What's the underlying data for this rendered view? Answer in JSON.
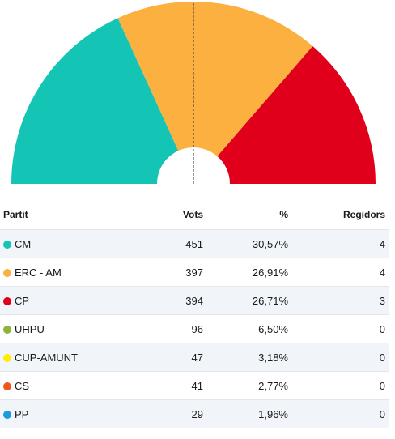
{
  "chart_data": {
    "type": "pie",
    "subtype": "hemicycle",
    "title": "",
    "majority_line": true,
    "seat_segments": [
      {
        "name": "CM",
        "seats": 4,
        "color": "#14c4b4"
      },
      {
        "name": "ERC - AM",
        "seats": 4,
        "color": "#fbb040"
      },
      {
        "name": "CP",
        "seats": 3,
        "color": "#e0001b"
      }
    ],
    "table_headers": {
      "party": "Partit",
      "votes": "Vots",
      "pct": "%",
      "seats": "Regidors"
    },
    "rows": [
      {
        "party": "CM",
        "votes": "451",
        "pct": "30,57%",
        "seats": "4",
        "color": "#14c4b4"
      },
      {
        "party": "ERC - AM",
        "votes": "397",
        "pct": "26,91%",
        "seats": "4",
        "color": "#fbb040"
      },
      {
        "party": "CP",
        "votes": "394",
        "pct": "26,71%",
        "seats": "3",
        "color": "#e0001b"
      },
      {
        "party": "UHPU",
        "votes": "96",
        "pct": "6,50%",
        "seats": "0",
        "color": "#8db33a"
      },
      {
        "party": "CUP-AMUNT",
        "votes": "47",
        "pct": "3,18%",
        "seats": "0",
        "color": "#ffed00"
      },
      {
        "party": "CS",
        "votes": "41",
        "pct": "2,77%",
        "seats": "0",
        "color": "#f2561d"
      },
      {
        "party": "PP",
        "votes": "29",
        "pct": "1,96%",
        "seats": "0",
        "color": "#1c9ae0"
      }
    ]
  }
}
